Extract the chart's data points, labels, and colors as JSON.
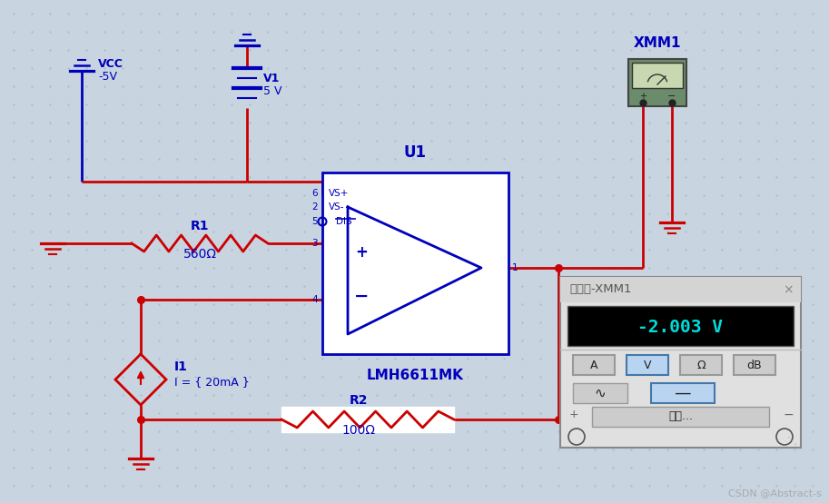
{
  "bg_color": "#c8d4e0",
  "dot_color": "#a8b8c8",
  "red": "#cc0000",
  "blue": "#0000bb",
  "vcc_label": "VCC",
  "vcc_value": "-5V",
  "v1_label": "V1",
  "v1_value": "5 V",
  "r1_label": "R1",
  "r1_value": "560Ω",
  "r2_label": "R2",
  "r2_value": "100Ω",
  "i1_label": "I1",
  "i1_value": "I = { 20mA }",
  "u1_label": "U1",
  "u1_chip": "LMH6611MK",
  "xmm1_label": "XMM1",
  "meter_title": "万用表-XMM1",
  "meter_reading": "-2.003 V",
  "meter_btn_a": "A",
  "meter_btn_v": "V",
  "meter_btn_ohm": "Ω",
  "meter_btn_db": "dB",
  "meter_btn_setup": "设置...",
  "csdn_watermark": "CSDN @Abstract-s"
}
